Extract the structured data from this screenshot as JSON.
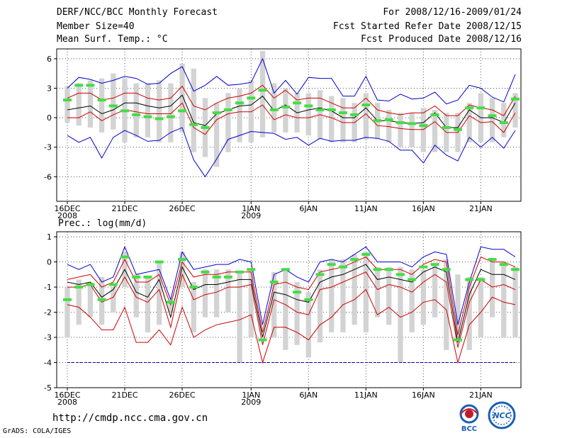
{
  "header": {
    "title": "DERF/NCC/BCC Monthly Forecast",
    "member": "Member Size=40",
    "variable": "Mean Surf. Temp.: °C",
    "period": "For 2008/12/16-2009/01/24",
    "refer": "Fcst Started Refer Date 2008/12/15",
    "produced": "Fcst Produced Date 2008/12/16"
  },
  "footer": {
    "url": "http://cmdp.ncc.cma.gov.cn",
    "grads": "GrADS: COLA/IGES"
  },
  "logos": {
    "bcc": "BCC",
    "ncc": "NCC"
  },
  "colors": {
    "bar": "#d3d3d3",
    "median": "#000000",
    "red": "#cc0000",
    "blue": "#0000cc",
    "obs": "#44dd44",
    "grid": "#555555"
  },
  "x_tick_labels": [
    {
      "label": "16DEC",
      "sub": "2008",
      "day": 0
    },
    {
      "label": "21DEC",
      "sub": "",
      "day": 5
    },
    {
      "label": "26DEC",
      "sub": "",
      "day": 10
    },
    {
      "label": "1JAN",
      "sub": "2009",
      "day": 16
    },
    {
      "label": "6JAN",
      "sub": "",
      "day": 21
    },
    {
      "label": "11JAN",
      "sub": "",
      "day": 26
    },
    {
      "label": "16JAN",
      "sub": "",
      "day": 31
    },
    {
      "label": "21JAN",
      "sub": "",
      "day": 36
    }
  ],
  "chart_data": [
    {
      "type": "line",
      "title": "Mean Surf. Temp.: °C",
      "ylim": [
        -8.5,
        7
      ],
      "yticks": [
        6,
        3,
        0,
        -3,
        -6
      ],
      "x": [
        0,
        1,
        2,
        3,
        4,
        5,
        6,
        7,
        8,
        9,
        10,
        11,
        12,
        13,
        14,
        15,
        16,
        17,
        18,
        19,
        20,
        21,
        22,
        23,
        24,
        25,
        26,
        27,
        28,
        29,
        30,
        31,
        32,
        33,
        34,
        35,
        36,
        37,
        38,
        39
      ],
      "bar_top": [
        3.2,
        3.5,
        3.8,
        4.0,
        4.5,
        4.0,
        3.5,
        3.5,
        3.8,
        3.5,
        5.5,
        5.0,
        2.0,
        1.5,
        2.5,
        3.0,
        3.8,
        6.8,
        3.5,
        3.0,
        2.5,
        2.5,
        2.8,
        2.2,
        2.0,
        1.5,
        2.5,
        1.5,
        0.8,
        0.5,
        0.5,
        1.0,
        0.8,
        0.5,
        0.5,
        1.5,
        2.5,
        2.0,
        1.5,
        2.5
      ],
      "bar_bottom": [
        -0.5,
        -0.8,
        -1.0,
        -1.5,
        -1.2,
        -2.5,
        -2.0,
        -2.0,
        -2.5,
        -2.5,
        -1.5,
        -3.5,
        -4.0,
        -5.0,
        -3.5,
        -2.5,
        -2.5,
        -2.0,
        -1.5,
        -1.5,
        -1.5,
        -1.8,
        -2.2,
        -2.5,
        -2.5,
        -2.5,
        -2.2,
        -2.2,
        -2.5,
        -3.0,
        -3.0,
        -3.5,
        -3.5,
        -3.5,
        -3.5,
        -2.5,
        -2.5,
        -2.5,
        -2.0,
        -1.0
      ],
      "series": [
        {
          "name": "max",
          "color": "blue",
          "values": [
            3.0,
            4.1,
            3.9,
            3.5,
            3.8,
            4.2,
            4.0,
            3.4,
            3.5,
            4.5,
            5.2,
            2.7,
            3.3,
            4.2,
            3.3,
            3.4,
            3.6,
            6.0,
            2.5,
            3.8,
            2.4,
            4.1,
            4.0,
            4.0,
            2.2,
            2.2,
            4.2,
            1.8,
            1.7,
            2.4,
            1.9,
            2.0,
            2.6,
            1.4,
            1.8,
            3.3,
            3.0,
            2.1,
            1.6,
            4.4
          ]
        },
        {
          "name": "upper",
          "color": "red",
          "values": [
            2.0,
            2.5,
            2.5,
            1.8,
            2.0,
            2.5,
            2.5,
            2.0,
            1.8,
            2.0,
            3.2,
            1.2,
            0.8,
            1.5,
            2.0,
            2.2,
            2.5,
            3.3,
            2.0,
            2.8,
            1.8,
            2.0,
            2.0,
            1.5,
            1.0,
            1.0,
            2.0,
            0.8,
            0.5,
            0.3,
            0.5,
            0.5,
            1.2,
            0.2,
            0.2,
            1.3,
            1.0,
            0.8,
            0.2,
            2.2
          ]
        },
        {
          "name": "median",
          "color": "median",
          "values": [
            0.8,
            1.0,
            1.2,
            0.4,
            0.8,
            1.5,
            1.5,
            1.2,
            1.0,
            1.2,
            2.3,
            -0.5,
            -0.8,
            0.4,
            0.8,
            1.2,
            1.3,
            2.2,
            0.7,
            1.3,
            0.5,
            0.8,
            1.0,
            0.7,
            0.0,
            0.0,
            1.0,
            -0.3,
            -0.3,
            -0.5,
            -0.6,
            -0.5,
            0.5,
            -1.0,
            -1.0,
            0.8,
            0.0,
            0.0,
            -0.5,
            1.5
          ]
        },
        {
          "name": "lower",
          "color": "red",
          "values": [
            0.0,
            0.0,
            0.6,
            -0.3,
            0.3,
            0.8,
            0.6,
            0.4,
            0.4,
            0.4,
            1.5,
            -1.0,
            -1.7,
            -0.2,
            0.4,
            0.6,
            0.6,
            1.3,
            -0.2,
            0.3,
            0.0,
            0.0,
            0.3,
            0.0,
            -0.5,
            -0.5,
            0.4,
            -0.8,
            -0.9,
            -1.1,
            -1.2,
            -1.2,
            -0.4,
            -1.5,
            -1.5,
            0.2,
            -0.5,
            -0.4,
            -1.5,
            0.5
          ]
        },
        {
          "name": "min",
          "color": "blue",
          "values": [
            -1.8,
            -2.5,
            -2.0,
            -4.1,
            -2.0,
            -1.3,
            -1.8,
            -2.4,
            -2.3,
            -1.5,
            -1.0,
            -4.3,
            -6.0,
            -4.2,
            -2.2,
            -1.8,
            -1.4,
            -1.5,
            -1.6,
            -2.2,
            -2.0,
            -2.8,
            -2.1,
            -2.4,
            -2.3,
            -2.3,
            -2.0,
            -2.1,
            -2.4,
            -3.3,
            -3.3,
            -4.6,
            -2.8,
            -3.8,
            -4.4,
            -2.0,
            -3.0,
            -2.0,
            -3.1,
            -1.3
          ]
        },
        {
          "name": "observed",
          "color": "obs",
          "values": [
            1.8,
            3.3,
            3.3,
            1.8,
            1.2,
            0.7,
            0.3,
            0.1,
            -0.1,
            0.1,
            0.7,
            -0.7,
            -1.0,
            0.5,
            0.8,
            1.5,
            2.0,
            2.8,
            0.8,
            1.1,
            1.5,
            1.2,
            0.8,
            0.8,
            0.5,
            0.3,
            1.3,
            -0.3,
            -0.2,
            -0.5,
            -0.6,
            -0.8,
            0.3,
            -1.0,
            -1.2,
            1.0,
            1.0,
            0.2,
            -0.5,
            1.9
          ]
        }
      ]
    },
    {
      "type": "line",
      "title": "Prec.: log(mm/d)",
      "ylim": [
        -5,
        1.2
      ],
      "yticks": [
        1,
        0,
        -1,
        -2,
        -3,
        -4,
        -5
      ],
      "x": [
        0,
        1,
        2,
        3,
        4,
        5,
        6,
        7,
        8,
        9,
        10,
        11,
        12,
        13,
        14,
        15,
        16,
        17,
        18,
        19,
        20,
        21,
        22,
        23,
        24,
        25,
        26,
        27,
        28,
        29,
        30,
        31,
        32,
        33,
        34,
        35,
        36,
        37,
        38,
        39
      ],
      "baseline": -4,
      "bar_top": [
        -1.0,
        -0.7,
        -0.8,
        -0.6,
        -1.0,
        0.4,
        -0.5,
        -0.6,
        0.0,
        -1.6,
        0.4,
        -0.8,
        -0.3,
        -0.3,
        -0.3,
        -0.4,
        -0.3,
        -3.3,
        -0.4,
        -0.3,
        -0.8,
        -1.2,
        -0.3,
        0.1,
        0.1,
        0.3,
        0.4,
        -0.2,
        -0.2,
        -0.2,
        -0.3,
        -0.3,
        -0.1,
        0.1,
        -0.5,
        -0.6,
        -0.6,
        0.1,
        0.0,
        -0.2
      ],
      "bar_bottom": [
        -3.0,
        -2.5,
        -2.2,
        -2.5,
        -2.0,
        -1.0,
        -2.2,
        -2.8,
        -2.5,
        -2.0,
        -1.0,
        -2.8,
        -2.2,
        -2.2,
        -2.0,
        -4.0,
        -3.0,
        -3.3,
        -3.0,
        -3.5,
        -3.3,
        -3.8,
        -3.2,
        -2.8,
        -2.8,
        -2.5,
        -2.8,
        -2.2,
        -2.5,
        -4.0,
        -2.8,
        -2.5,
        -2.2,
        -3.5,
        -3.0,
        -3.5,
        -3.0,
        -2.2,
        -3.0,
        -3.0
      ],
      "series": [
        {
          "name": "max",
          "color": "blue",
          "values": [
            -0.1,
            -0.3,
            -0.1,
            -0.8,
            -0.6,
            0.6,
            -0.5,
            -0.4,
            -0.3,
            -1.5,
            0.4,
            -0.3,
            -0.2,
            -0.1,
            -0.1,
            0.1,
            0.0,
            -2.5,
            -0.5,
            -0.3,
            -0.6,
            -0.8,
            0.0,
            0.1,
            0.0,
            0.3,
            0.6,
            0.0,
            0.0,
            0.0,
            -0.2,
            0.2,
            0.4,
            0.3,
            -2.5,
            -0.8,
            0.6,
            0.5,
            0.5,
            0.2
          ]
        },
        {
          "name": "upper",
          "color": "red",
          "values": [
            -0.7,
            -0.6,
            -0.5,
            -1.0,
            -0.8,
            0.1,
            -0.8,
            -0.8,
            -0.5,
            -1.7,
            0.0,
            -0.6,
            -0.5,
            -0.5,
            -0.4,
            -0.4,
            -0.4,
            -2.8,
            -0.9,
            -0.8,
            -1.0,
            -1.1,
            -0.4,
            -0.3,
            -0.2,
            0.0,
            0.2,
            -0.3,
            -0.3,
            -0.3,
            -0.5,
            -0.1,
            0.1,
            0.0,
            -2.9,
            -1.0,
            0.2,
            0.0,
            0.0,
            -0.2
          ]
        },
        {
          "name": "median",
          "color": "median",
          "values": [
            -0.8,
            -0.9,
            -0.8,
            -1.4,
            -1.1,
            -0.3,
            -1.2,
            -1.4,
            -0.7,
            -2.2,
            -0.2,
            -1.1,
            -0.9,
            -0.9,
            -0.8,
            -0.7,
            -0.7,
            -3.0,
            -1.2,
            -1.3,
            -1.5,
            -1.6,
            -0.8,
            -0.6,
            -0.5,
            -0.3,
            -0.1,
            -0.7,
            -0.6,
            -0.7,
            -0.8,
            -0.4,
            -0.2,
            -0.4,
            -3.2,
            -1.3,
            -0.3,
            -0.5,
            -0.5,
            -0.7
          ]
        },
        {
          "name": "lower",
          "color": "red",
          "values": [
            -1.0,
            -1.0,
            -0.9,
            -1.6,
            -1.4,
            -0.6,
            -1.4,
            -1.6,
            -1.1,
            -2.6,
            -0.5,
            -1.5,
            -1.3,
            -1.2,
            -1.0,
            -1.0,
            -0.9,
            -3.3,
            -1.5,
            -1.7,
            -2.0,
            -2.1,
            -1.1,
            -1.0,
            -0.8,
            -0.6,
            -0.4,
            -1.1,
            -0.9,
            -1.0,
            -1.2,
            -0.8,
            -0.5,
            -0.8,
            -3.4,
            -1.6,
            -0.7,
            -1.0,
            -0.9,
            -1.1
          ]
        },
        {
          "name": "min",
          "color": "red",
          "values": [
            -1.7,
            -1.8,
            -2.2,
            -2.7,
            -2.7,
            -1.8,
            -3.2,
            -3.2,
            -2.7,
            -3.3,
            -1.8,
            -3.0,
            -2.7,
            -2.5,
            -2.4,
            -2.3,
            -2.1,
            -4.0,
            -2.6,
            -2.6,
            -2.8,
            -3.1,
            -2.5,
            -2.2,
            -1.7,
            -1.5,
            -1.1,
            -2.1,
            -1.8,
            -2.2,
            -2.0,
            -1.6,
            -1.5,
            -1.9,
            -4.0,
            -2.5,
            -2.0,
            -1.4,
            -1.6,
            -1.7
          ]
        },
        {
          "name": "observed",
          "color": "obs",
          "values": [
            -1.5,
            -1.0,
            -0.9,
            -1.5,
            -0.9,
            0.2,
            -0.6,
            -0.6,
            0.0,
            -1.6,
            0.1,
            -1.0,
            -0.4,
            -0.6,
            -0.6,
            -0.4,
            -0.3,
            -3.1,
            -0.8,
            -0.3,
            -1.2,
            -1.5,
            -0.5,
            -0.1,
            -0.2,
            0.1,
            0.3,
            -0.3,
            -0.3,
            -0.5,
            -0.7,
            -0.2,
            -0.1,
            -0.3,
            -3.1,
            -0.7,
            -0.7,
            0.1,
            -0.1,
            -0.3
          ]
        }
      ]
    }
  ]
}
